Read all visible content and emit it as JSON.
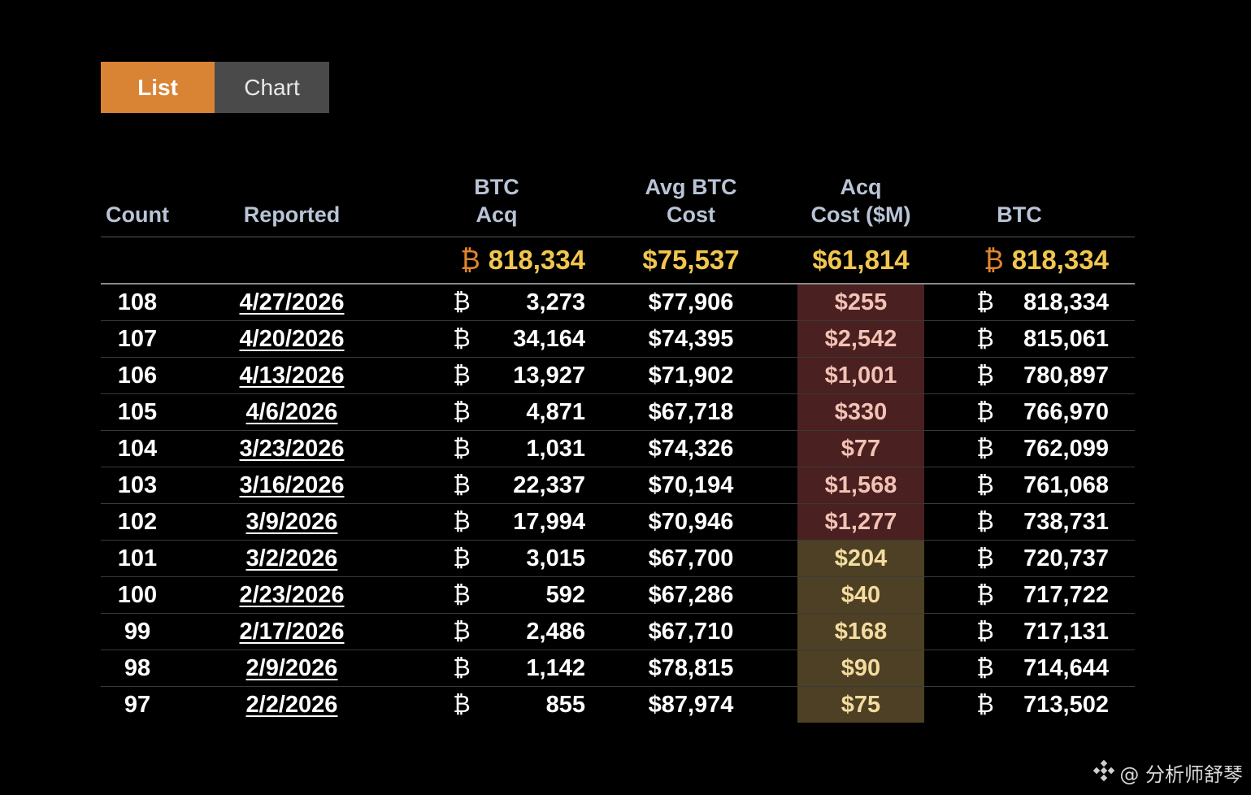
{
  "view_toggle": {
    "list_label": "List",
    "chart_label": "Chart",
    "active": "List"
  },
  "columns": {
    "count": "Count",
    "reported": "Reported",
    "btc_acq_line1": "BTC",
    "btc_acq_line2": "Acq",
    "avg_cost_line1": "Avg BTC",
    "avg_cost_line2": "Cost",
    "acq_cost_line1": "Acq",
    "acq_cost_line2": "Cost ($M)",
    "btc": "BTC"
  },
  "btc_symbol": "₿",
  "totals": {
    "btc_acq": "818,334",
    "avg_cost": "$75,537",
    "acq_cost": "$61,814",
    "btc": "818,334"
  },
  "rows": [
    {
      "count": "108",
      "reported": "4/27/2026",
      "btc_acq": "3,273",
      "avg_cost": "$77,906",
      "acq_cost": "$255",
      "btc": "818,334",
      "cost_tone": "red"
    },
    {
      "count": "107",
      "reported": "4/20/2026",
      "btc_acq": "34,164",
      "avg_cost": "$74,395",
      "acq_cost": "$2,542",
      "btc": "815,061",
      "cost_tone": "red"
    },
    {
      "count": "106",
      "reported": "4/13/2026",
      "btc_acq": "13,927",
      "avg_cost": "$71,902",
      "acq_cost": "$1,001",
      "btc": "780,897",
      "cost_tone": "red"
    },
    {
      "count": "105",
      "reported": "4/6/2026",
      "btc_acq": "4,871",
      "avg_cost": "$67,718",
      "acq_cost": "$330",
      "btc": "766,970",
      "cost_tone": "red"
    },
    {
      "count": "104",
      "reported": "3/23/2026",
      "btc_acq": "1,031",
      "avg_cost": "$74,326",
      "acq_cost": "$77",
      "btc": "762,099",
      "cost_tone": "red"
    },
    {
      "count": "103",
      "reported": "3/16/2026",
      "btc_acq": "22,337",
      "avg_cost": "$70,194",
      "acq_cost": "$1,568",
      "btc": "761,068",
      "cost_tone": "red"
    },
    {
      "count": "102",
      "reported": "3/9/2026",
      "btc_acq": "17,994",
      "avg_cost": "$70,946",
      "acq_cost": "$1,277",
      "btc": "738,731",
      "cost_tone": "red"
    },
    {
      "count": "101",
      "reported": "3/2/2026",
      "btc_acq": "3,015",
      "avg_cost": "$67,700",
      "acq_cost": "$204",
      "btc": "720,737",
      "cost_tone": "olive"
    },
    {
      "count": "100",
      "reported": "2/23/2026",
      "btc_acq": "592",
      "avg_cost": "$67,286",
      "acq_cost": "$40",
      "btc": "717,722",
      "cost_tone": "olive"
    },
    {
      "count": "99",
      "reported": "2/17/2026",
      "btc_acq": "2,486",
      "avg_cost": "$67,710",
      "acq_cost": "$168",
      "btc": "717,131",
      "cost_tone": "olive"
    },
    {
      "count": "98",
      "reported": "2/9/2026",
      "btc_acq": "1,142",
      "avg_cost": "$78,815",
      "acq_cost": "$90",
      "btc": "714,644",
      "cost_tone": "olive"
    },
    {
      "count": "97",
      "reported": "2/2/2026",
      "btc_acq": "855",
      "avg_cost": "$87,974",
      "acq_cost": "$75",
      "btc": "713,502",
      "cost_tone": "olive"
    }
  ],
  "colors": {
    "accent_orange": "#d98334",
    "btc_symbol": "#e0852f",
    "totals_gold": "#f2c64e",
    "cost_red_bg": "#4a2020",
    "cost_olive_bg": "#4d4024"
  },
  "watermark": {
    "icon": "diamond-logo-icon",
    "text": "@ 分析师舒琴"
  }
}
